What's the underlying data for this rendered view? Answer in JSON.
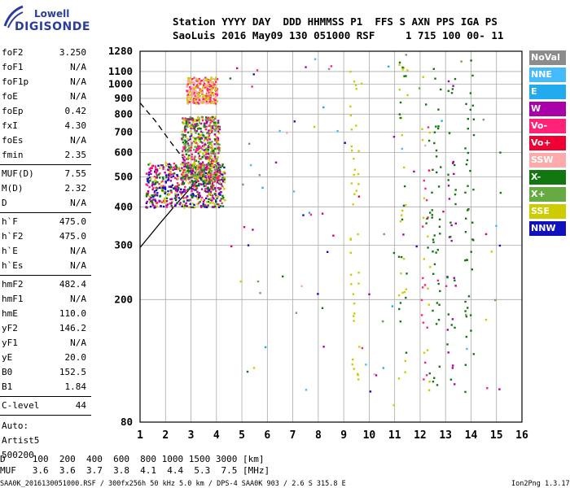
{
  "logo": {
    "line1": "Lowell",
    "line2": "DIGISONDE"
  },
  "header": {
    "line1": "Station YYYY DAY  DDD HHMMSS P1  FFS S AXN PPS IGA PS",
    "line2": "SaoLuis 2016 May09 130 051000 RSF     1 715 100 00- 11"
  },
  "params": [
    {
      "label": "foF2",
      "value": "3.250"
    },
    {
      "label": "foF1",
      "value": "N/A"
    },
    {
      "label": "foF1p",
      "value": "N/A"
    },
    {
      "label": "foE",
      "value": "N/A"
    },
    {
      "label": "foEp",
      "value": "0.42"
    },
    {
      "label": "fxI",
      "value": "4.30"
    },
    {
      "label": "foEs",
      "value": "N/A"
    },
    {
      "label": "fmin",
      "value": "2.35"
    },
    {
      "label": "MUF(D)",
      "value": "7.55"
    },
    {
      "label": "M(D)",
      "value": "2.32"
    },
    {
      "label": "D",
      "value": "N/A"
    },
    {
      "label": "h`F",
      "value": "475.0"
    },
    {
      "label": "h`F2",
      "value": "475.0"
    },
    {
      "label": "h`E",
      "value": "N/A"
    },
    {
      "label": "h`Es",
      "value": "N/A"
    },
    {
      "label": "hmF2",
      "value": "482.4"
    },
    {
      "label": "hmF1",
      "value": "N/A"
    },
    {
      "label": "hmE",
      "value": "110.0"
    },
    {
      "label": "yF2",
      "value": "146.2"
    },
    {
      "label": "yF1",
      "value": "N/A"
    },
    {
      "label": "yE",
      "value": "20.0"
    },
    {
      "label": "B0",
      "value": "152.5"
    },
    {
      "label": "B1",
      "value": "1.84"
    },
    {
      "label": "C-level",
      "value": "44"
    }
  ],
  "auto": {
    "line1": "Auto:",
    "line2": "Artist5",
    "line3": "500200"
  },
  "legend": [
    {
      "label": "NoVal",
      "color": "#8c8c8c"
    },
    {
      "label": "NNE",
      "color": "#44bbff"
    },
    {
      "label": "E",
      "color": "#22aaee"
    },
    {
      "label": "W",
      "color": "#aa00aa"
    },
    {
      "label": "Vo-",
      "color": "#ff2277"
    },
    {
      "label": "Vo+",
      "color": "#ee0033"
    },
    {
      "label": "SSW",
      "color": "#ffaaaa"
    },
    {
      "label": "X-",
      "color": "#117711"
    },
    {
      "label": "X+",
      "color": "#66aa44"
    },
    {
      "label": "SSE",
      "color": "#cccc00"
    },
    {
      "label": "NNW",
      "color": "#1111bb"
    }
  ],
  "footer": {
    "line1": "D     100  200  400  600  800 1000 1500 3000 [km]",
    "line2": "MUF   3.6  3.6  3.7  3.8  4.1  4.4  5.3  7.5 [MHz]",
    "line3_left": "SAA0K_2016130051000.RSF / 300fx256h 50 kHz 5.0 km / DPS-4 SAA0K 903 / 2.6 S 315.8 E",
    "line3_right": "Ion2Png 1.3.17"
  },
  "chart_data": {
    "type": "scatter",
    "title": "",
    "xlabel": "",
    "ylabel": "",
    "xlim": [
      1,
      16
    ],
    "ylim": [
      80,
      1280
    ],
    "y_scale": "log",
    "x_ticks": [
      1,
      2,
      3,
      4,
      5,
      6,
      7,
      8,
      9,
      10,
      11,
      12,
      13,
      14,
      15,
      16
    ],
    "y_ticks": [
      80,
      200,
      300,
      400,
      500,
      600,
      700,
      800,
      900,
      1000,
      1100,
      1280
    ],
    "dense_clusters": [
      {
        "x_range": [
          1.2,
          4.3
        ],
        "y_range": [
          400,
          560
        ],
        "colors": [
          "#aa00aa",
          "#ff2277",
          "#117711",
          "#cccc00",
          "#1111bb"
        ]
      },
      {
        "x_range": [
          2.6,
          4.1
        ],
        "y_range": [
          480,
          790
        ],
        "colors": [
          "#cccc00",
          "#117711",
          "#ff2277",
          "#aa00aa",
          "#66aa44"
        ]
      },
      {
        "x_range": [
          2.8,
          4.0
        ],
        "y_range": [
          870,
          1060
        ],
        "colors": [
          "#cccc00",
          "#ffaaaa",
          "#ff2277"
        ]
      }
    ],
    "vertical_streaks": [
      {
        "x": 9.4,
        "colors": [
          "#cccc00"
        ]
      },
      {
        "x": 11.3,
        "colors": [
          "#117711",
          "#cccc00"
        ]
      },
      {
        "x": 12.2,
        "colors": [
          "#117711",
          "#ff2277",
          "#cccc00"
        ]
      },
      {
        "x": 12.6,
        "colors": [
          "#117711"
        ]
      },
      {
        "x": 13.2,
        "colors": [
          "#117711",
          "#aa00aa"
        ]
      },
      {
        "x": 13.9,
        "colors": [
          "#117711"
        ]
      }
    ],
    "profile_curves": [
      {
        "style": "solid",
        "points": [
          [
            1.0,
            295
          ],
          [
            1.8,
            355
          ],
          [
            2.5,
            415
          ],
          [
            3.0,
            462
          ],
          [
            3.25,
            482
          ]
        ]
      },
      {
        "style": "dashed",
        "points": [
          [
            1.0,
            870
          ],
          [
            1.6,
            760
          ],
          [
            2.2,
            650
          ],
          [
            2.8,
            560
          ],
          [
            3.25,
            482
          ]
        ]
      }
    ]
  }
}
